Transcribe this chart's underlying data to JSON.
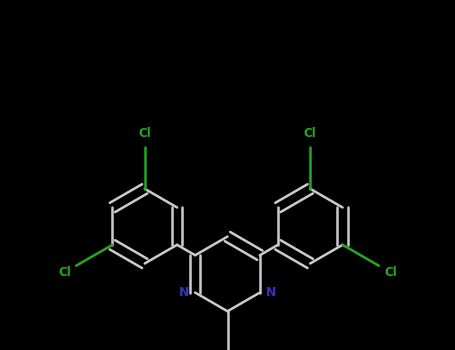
{
  "bg_color": "#000000",
  "bond_color": "#cccccc",
  "N_color": "#3333bb",
  "Cl_color": "#22aa22",
  "bond_width": 1.8,
  "dbo": 0.006,
  "figsize": [
    4.55,
    3.5
  ],
  "dpi": 100,
  "xlim": [
    -2.8,
    2.8
  ],
  "ylim": [
    -1.8,
    2.8
  ]
}
